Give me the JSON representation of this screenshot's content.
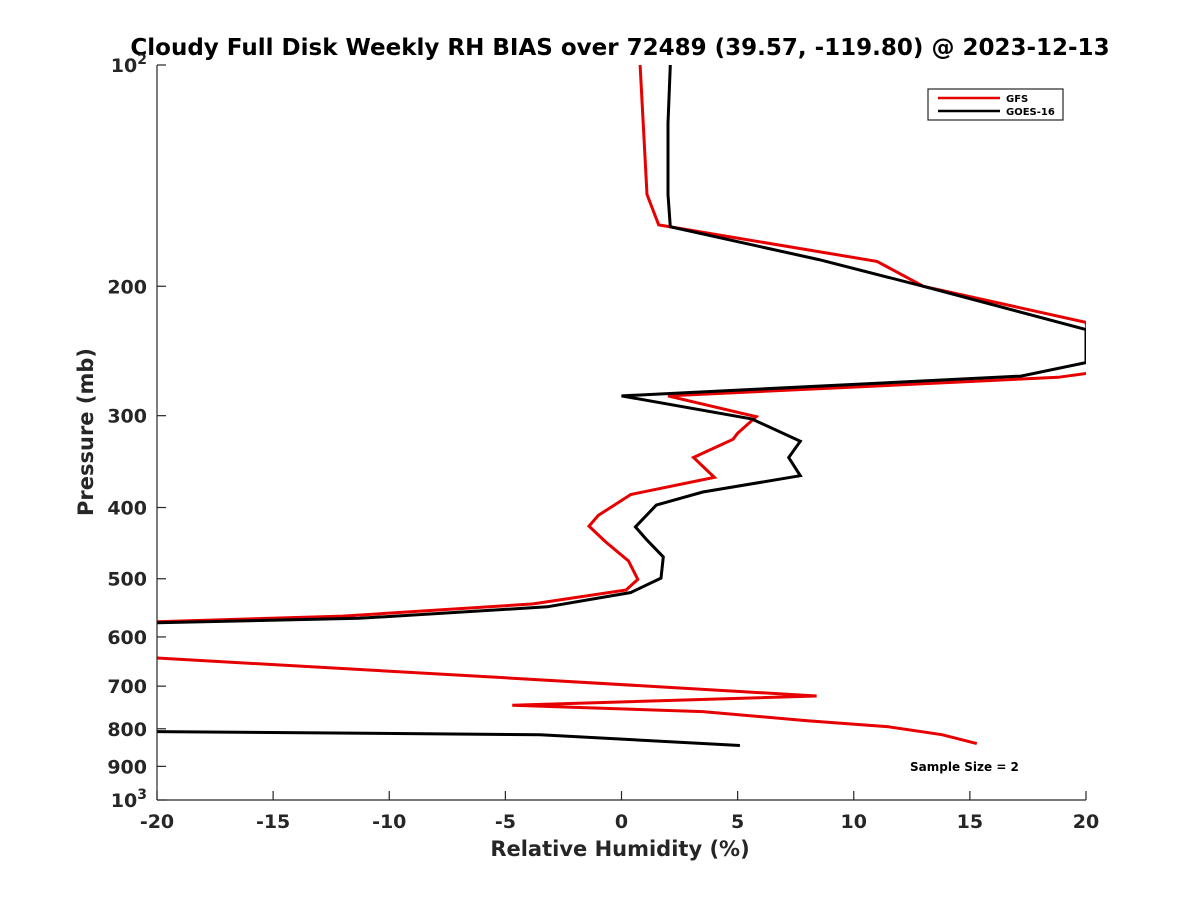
{
  "chart_data": {
    "type": "line",
    "title": "Cloudy Full Disk Weekly RH BIAS over 72489 (39.57, -119.80) @ 2023-12-13",
    "xlabel": "Relative Humidity (%)",
    "ylabel": "Pressure (mb)",
    "xlim": [
      -20,
      20
    ],
    "ylim": [
      100,
      1000
    ],
    "yscale": "log",
    "y_reversed": true,
    "xticks": [
      -20,
      -15,
      -10,
      -5,
      0,
      5,
      10,
      15,
      20
    ],
    "yticks": [
      {
        "value": 100,
        "label": "10",
        "sup": "2"
      },
      {
        "value": 200,
        "label": "200",
        "sup": ""
      },
      {
        "value": 300,
        "label": "300",
        "sup": ""
      },
      {
        "value": 400,
        "label": "400",
        "sup": ""
      },
      {
        "value": 500,
        "label": "500",
        "sup": ""
      },
      {
        "value": 600,
        "label": "600",
        "sup": ""
      },
      {
        "value": 700,
        "label": "700",
        "sup": ""
      },
      {
        "value": 800,
        "label": "800",
        "sup": ""
      },
      {
        "value": 900,
        "label": "900",
        "sup": ""
      },
      {
        "value": 1000,
        "label": "10",
        "sup": "3"
      }
    ],
    "grid": false,
    "legend_position": "top-right",
    "annotation": "Sample Size = 2",
    "series": [
      {
        "name": "GFS",
        "color": "#e60000",
        "segments": [
          [
            [
              0.8,
              100
            ],
            [
              1.1,
              150
            ],
            [
              1.6,
              165
            ],
            [
              11.0,
              185
            ],
            [
              13.0,
              200
            ],
            [
              20.0,
              224
            ],
            [
              20.3,
              262
            ],
            [
              18.8,
              266
            ],
            [
              2.0,
              282
            ],
            [
              5.8,
              301
            ],
            [
              5.0,
              317
            ],
            [
              4.8,
              323
            ],
            [
              3.1,
              342
            ],
            [
              4.0,
              364
            ],
            [
              0.4,
              384
            ],
            [
              -1.0,
              410
            ],
            [
              -1.4,
              424
            ],
            [
              -0.7,
              445
            ],
            [
              0.3,
              473
            ],
            [
              0.7,
              501
            ],
            [
              0.2,
              518
            ],
            [
              -3.8,
              541
            ],
            [
              -12.0,
              562
            ],
            [
              -20.0,
              572
            ]
          ],
          [
            [
              -20.0,
              641
            ],
            [
              -5.0,
              682
            ],
            [
              8.4,
              722
            ],
            [
              -4.7,
              743
            ],
            [
              3.5,
              758
            ],
            [
              8.0,
              780
            ],
            [
              11.5,
              795
            ],
            [
              13.8,
              815
            ],
            [
              15.3,
              838
            ]
          ]
        ]
      },
      {
        "name": "GOES-16",
        "color": "#000000",
        "segments": [
          [
            [
              2.1,
              100
            ],
            [
              2.0,
              120
            ],
            [
              2.0,
              150
            ],
            [
              2.1,
              166
            ],
            [
              8.5,
              184
            ],
            [
              13.0,
              200
            ],
            [
              20.0,
              229
            ],
            [
              20.0,
              254
            ],
            [
              17.2,
              265
            ],
            [
              0.0,
              282
            ],
            [
              5.6,
              303
            ],
            [
              7.7,
              325
            ],
            [
              7.2,
              342
            ],
            [
              7.7,
              362
            ],
            [
              3.5,
              381
            ],
            [
              1.5,
              397
            ],
            [
              0.6,
              425
            ],
            [
              1.1,
              443
            ],
            [
              1.8,
              467
            ],
            [
              1.7,
              499
            ],
            [
              0.4,
              522
            ],
            [
              -3.2,
              546
            ],
            [
              -11.3,
              566
            ],
            [
              -20.0,
              574
            ]
          ],
          [
            [
              -20.0,
              807
            ],
            [
              -3.5,
              815
            ],
            [
              5.1,
              843
            ]
          ]
        ]
      }
    ]
  }
}
